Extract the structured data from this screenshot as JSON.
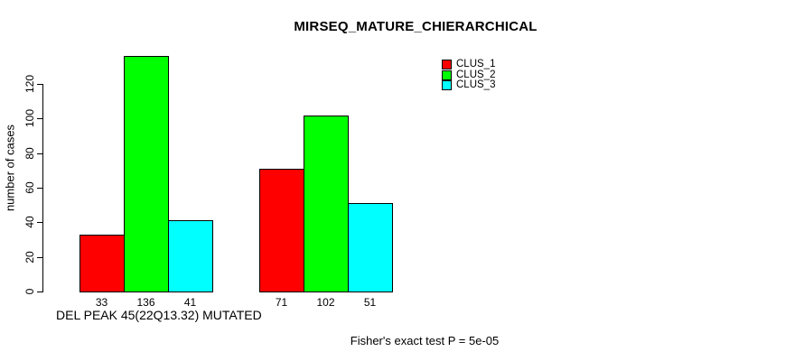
{
  "chart_data": {
    "type": "bar",
    "title": "MIRSEQ_MATURE_CHIERARCHICAL",
    "ylabel": "number of cases",
    "xlabel": "DEL PEAK 45(22Q13.32) MUTATED",
    "annotation": "Fisher's exact test P = 5e-05",
    "categories": [
      "",
      ""
    ],
    "series": [
      {
        "name": "CLUS_1",
        "color": "#ff0000",
        "values": [
          33,
          71
        ]
      },
      {
        "name": "CLUS_2",
        "color": "#00ff00",
        "values": [
          136,
          102
        ]
      },
      {
        "name": "CLUS_3",
        "color": "#00ffff",
        "values": [
          41,
          51
        ]
      }
    ],
    "yticks": [
      0,
      20,
      40,
      60,
      80,
      100,
      120
    ],
    "ylim": [
      0,
      120
    ],
    "bar_value_labels": true,
    "legend_position": "top-right",
    "grid": false,
    "axis_color": "#000000",
    "background": "#ffffff"
  }
}
